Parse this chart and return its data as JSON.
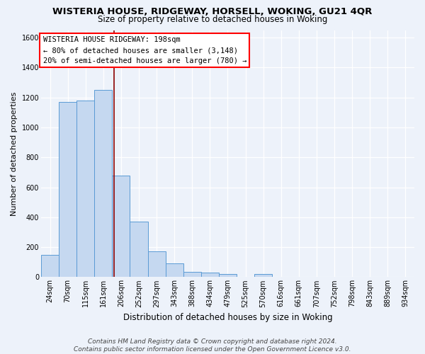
{
  "title": "WISTERIA HOUSE, RIDGEWAY, HORSELL, WOKING, GU21 4QR",
  "subtitle": "Size of property relative to detached houses in Woking",
  "xlabel": "Distribution of detached houses by size in Woking",
  "ylabel": "Number of detached properties",
  "footer_line1": "Contains HM Land Registry data © Crown copyright and database right 2024.",
  "footer_line2": "Contains public sector information licensed under the Open Government Licence v3.0.",
  "categories": [
    "24sqm",
    "70sqm",
    "115sqm",
    "161sqm",
    "206sqm",
    "252sqm",
    "297sqm",
    "343sqm",
    "388sqm",
    "434sqm",
    "479sqm",
    "525sqm",
    "570sqm",
    "616sqm",
    "661sqm",
    "707sqm",
    "752sqm",
    "798sqm",
    "843sqm",
    "889sqm",
    "934sqm"
  ],
  "values": [
    150,
    1170,
    1180,
    1250,
    680,
    370,
    170,
    90,
    35,
    30,
    20,
    0,
    20,
    0,
    0,
    0,
    0,
    0,
    0,
    0,
    0
  ],
  "bar_color": "#c5d8f0",
  "bar_edge_color": "#5b9bd5",
  "ylim": [
    0,
    1650
  ],
  "yticks": [
    0,
    200,
    400,
    600,
    800,
    1000,
    1200,
    1400,
    1600
  ],
  "red_line_color": "#8b0000",
  "red_line_index": 3.6,
  "annotation_text_line1": "WISTERIA HOUSE RIDGEWAY: 198sqm",
  "annotation_text_line2": "← 80% of detached houses are smaller (3,148)",
  "annotation_text_line3": "20% of semi-detached houses are larger (780) →",
  "bg_color": "#edf2fa",
  "grid_color": "#ffffff",
  "title_fontsize": 9.5,
  "subtitle_fontsize": 8.5,
  "xlabel_fontsize": 8.5,
  "ylabel_fontsize": 8.0,
  "tick_fontsize": 7.0,
  "annotation_fontsize": 7.5,
  "footer_fontsize": 6.5
}
